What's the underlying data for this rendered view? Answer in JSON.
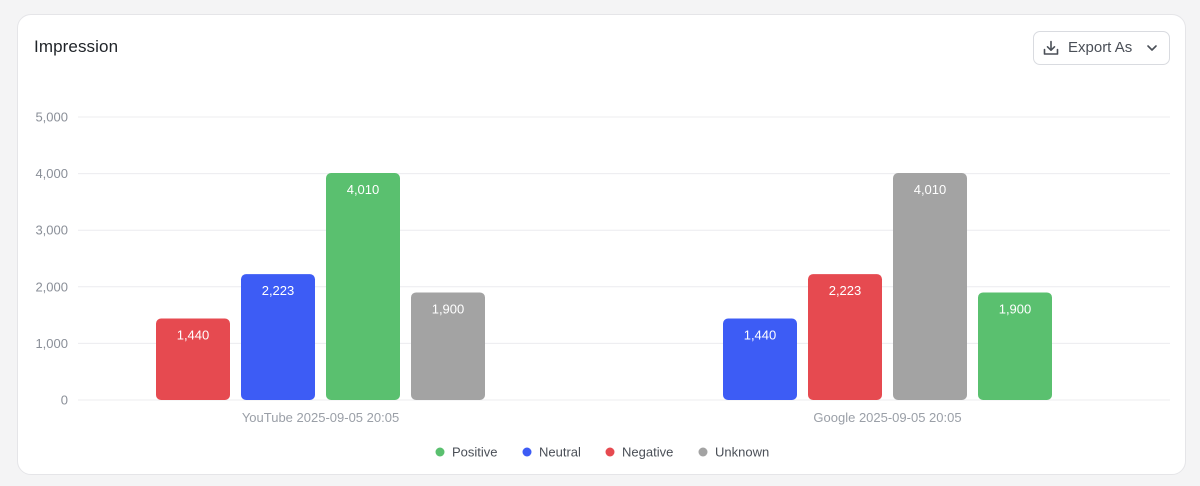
{
  "card": {
    "title": "Impression",
    "export_label": "Export As",
    "export_icon": "download-icon",
    "chevron_icon": "chevron-down-icon"
  },
  "chart_data": {
    "type": "bar",
    "title": "Impression",
    "xlabel": "",
    "ylabel": "",
    "ylim": [
      0,
      5000
    ],
    "yticks": [
      0,
      1000,
      2000,
      3000,
      4000,
      5000
    ],
    "ytick_labels": [
      "0",
      "1,000",
      "2,000",
      "3,000",
      "4,000",
      "5,000"
    ],
    "grid": true,
    "legend_position": "bottom",
    "legend": [
      {
        "name": "Positive",
        "color": "#5ac06f"
      },
      {
        "name": "Neutral",
        "color": "#3d5cf5"
      },
      {
        "name": "Negative",
        "color": "#e64a50"
      },
      {
        "name": "Unknown",
        "color": "#a3a3a3"
      }
    ],
    "groups": [
      {
        "category": "YouTube 2025-09-05 20:05",
        "bars": [
          {
            "series": "Negative",
            "value": 1440,
            "label": "1,440"
          },
          {
            "series": "Neutral",
            "value": 2223,
            "label": "2,223"
          },
          {
            "series": "Positive",
            "value": 4010,
            "label": "4,010"
          },
          {
            "series": "Unknown",
            "value": 1900,
            "label": "1,900"
          }
        ]
      },
      {
        "category": "Google 2025-09-05 20:05",
        "bars": [
          {
            "series": "Neutral",
            "value": 1440,
            "label": "1,440"
          },
          {
            "series": "Negative",
            "value": 2223,
            "label": "2,223"
          },
          {
            "series": "Unknown",
            "value": 4010,
            "label": "4,010"
          },
          {
            "series": "Positive",
            "value": 1900,
            "label": "1,900"
          }
        ]
      }
    ]
  }
}
